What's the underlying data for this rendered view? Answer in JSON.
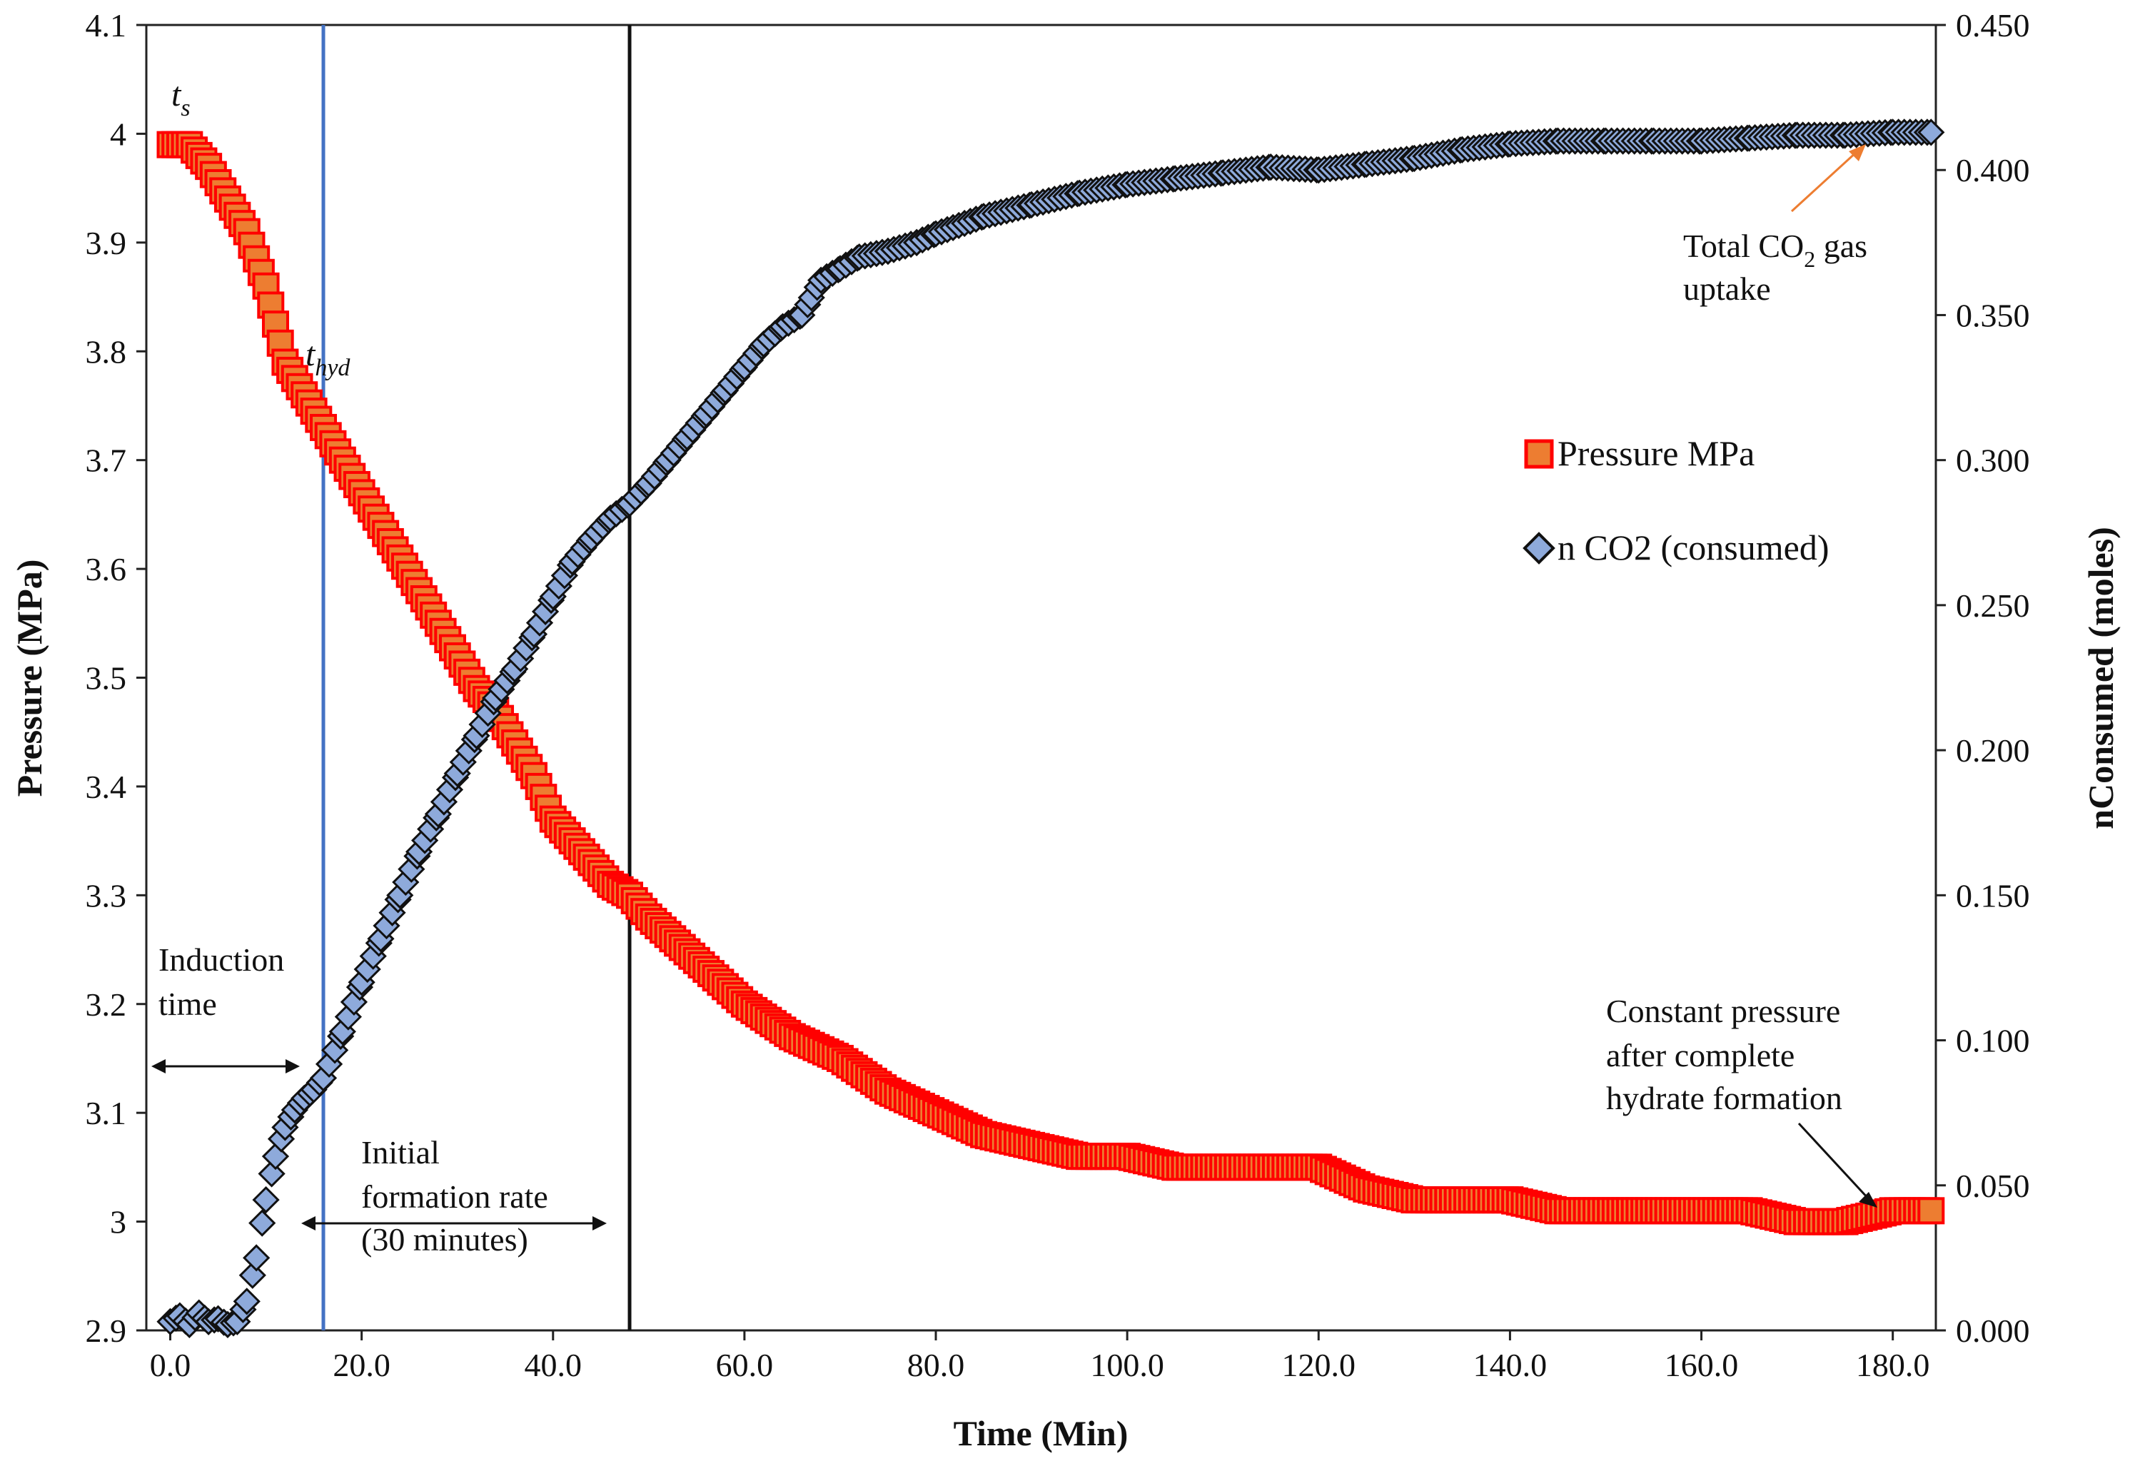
{
  "chart_data": {
    "type": "scatter",
    "title": "",
    "xlabel": "Time (Min)",
    "ylabel_left": "Pressure (MPa)",
    "ylabel_right": "nConsumed (moles)",
    "xlim": [
      -2.5,
      184.5
    ],
    "ylim_left": [
      2.9,
      4.1
    ],
    "ylim_right": [
      0.0,
      0.45
    ],
    "x_ticks": [
      0,
      20,
      40,
      60,
      80,
      100,
      120,
      140,
      160,
      180
    ],
    "x_tick_labels": [
      "0.0",
      "20.0",
      "40.0",
      "60.0",
      "80.0",
      "100.0",
      "120.0",
      "140.0",
      "160.0",
      "180.0"
    ],
    "y_left_ticks": [
      2.9,
      3.0,
      3.1,
      3.2,
      3.3,
      3.4,
      3.5,
      3.6,
      3.7,
      3.8,
      3.9,
      4.0,
      4.1
    ],
    "y_left_tick_labels": [
      "2.9",
      "3",
      "3.1",
      "3.2",
      "3.3",
      "3.4",
      "3.5",
      "3.6",
      "3.7",
      "3.8",
      "3.9",
      "4",
      "4.1"
    ],
    "y_right_ticks": [
      0.0,
      0.05,
      0.1,
      0.15,
      0.2,
      0.25,
      0.3,
      0.35,
      0.4,
      0.45
    ],
    "y_right_tick_labels": [
      "0.000",
      "0.050",
      "0.100",
      "0.150",
      "0.200",
      "0.250",
      "0.300",
      "0.350",
      "0.400",
      "0.450"
    ],
    "grid": false,
    "legend_position": "right-middle",
    "series": [
      {
        "name": "Pressure MPa",
        "axis": "left",
        "marker": "square",
        "color": "#ed7d31",
        "edge_color": "#ff0000",
        "x": [
          0,
          2,
          4,
          6,
          8,
          10,
          12,
          14,
          16,
          18,
          20,
          22,
          24,
          26,
          28,
          30,
          32,
          34,
          36,
          38,
          40,
          42,
          44,
          46,
          48,
          50,
          55,
          60,
          65,
          70,
          75,
          80,
          85,
          90,
          95,
          100,
          105,
          110,
          115,
          120,
          125,
          130,
          135,
          140,
          145,
          150,
          155,
          160,
          165,
          170,
          175,
          180,
          184
        ],
        "y": [
          3.99,
          3.99,
          3.97,
          3.94,
          3.91,
          3.86,
          3.79,
          3.76,
          3.73,
          3.7,
          3.67,
          3.64,
          3.61,
          3.58,
          3.55,
          3.52,
          3.49,
          3.47,
          3.44,
          3.41,
          3.37,
          3.35,
          3.33,
          3.31,
          3.3,
          3.28,
          3.24,
          3.2,
          3.17,
          3.15,
          3.12,
          3.1,
          3.08,
          3.07,
          3.06,
          3.06,
          3.05,
          3.05,
          3.05,
          3.05,
          3.03,
          3.02,
          3.02,
          3.02,
          3.01,
          3.01,
          3.01,
          3.01,
          3.01,
          3.0,
          3.0,
          3.01,
          3.01
        ]
      },
      {
        "name": "n CO2 (consumed)",
        "axis": "right",
        "marker": "diamond",
        "color": "#8eaadb",
        "edge_color": "#111111",
        "x": [
          0,
          1,
          2,
          3,
          4,
          5,
          6,
          7,
          8,
          9,
          10,
          11,
          12,
          13,
          14,
          15,
          16,
          18,
          20,
          22,
          24,
          26,
          28,
          30,
          32,
          34,
          36,
          38,
          40,
          42,
          44,
          46,
          48,
          50,
          52,
          54,
          56,
          58,
          60,
          62,
          64,
          66,
          67,
          68,
          70,
          72,
          75,
          78,
          80,
          85,
          90,
          95,
          100,
          105,
          110,
          115,
          120,
          125,
          130,
          135,
          140,
          145,
          150,
          155,
          160,
          165,
          170,
          175,
          180,
          184
        ],
        "y": [
          0.003,
          0.005,
          0.002,
          0.006,
          0.003,
          0.004,
          0.002,
          0.003,
          0.01,
          0.025,
          0.045,
          0.06,
          0.07,
          0.076,
          0.08,
          0.083,
          0.087,
          0.103,
          0.12,
          0.135,
          0.15,
          0.165,
          0.178,
          0.192,
          0.205,
          0.218,
          0.228,
          0.24,
          0.253,
          0.265,
          0.273,
          0.28,
          0.285,
          0.292,
          0.3,
          0.308,
          0.316,
          0.324,
          0.332,
          0.34,
          0.346,
          0.35,
          0.356,
          0.362,
          0.366,
          0.37,
          0.372,
          0.375,
          0.378,
          0.384,
          0.388,
          0.392,
          0.395,
          0.397,
          0.399,
          0.401,
          0.4,
          0.402,
          0.404,
          0.407,
          0.409,
          0.41,
          0.41,
          0.41,
          0.41,
          0.411,
          0.412,
          0.412,
          0.413,
          0.413
        ]
      }
    ],
    "vertical_lines": [
      {
        "name": "t_hyd line",
        "x": 16,
        "color": "#4472c4"
      },
      {
        "name": "initial rate end",
        "x": 48,
        "color": "#111111"
      }
    ],
    "annotations": [
      {
        "id": "ts",
        "text_main": "t",
        "text_sub": "s"
      },
      {
        "id": "thyd",
        "text_main": "t",
        "text_sub": "hyd"
      },
      {
        "id": "induction",
        "line1": "Induction",
        "line2": "time"
      },
      {
        "id": "initial",
        "line1": "Initial",
        "line2": "formation rate",
        "line3": "(30 minutes)"
      },
      {
        "id": "constant",
        "line1": "Constant pressure",
        "line2": "after complete",
        "line3": "hydrate formation"
      },
      {
        "id": "total",
        "line1_a": "Total CO",
        "line1_sub": "2",
        "line1_b": " gas",
        "line2": "uptake"
      }
    ]
  }
}
